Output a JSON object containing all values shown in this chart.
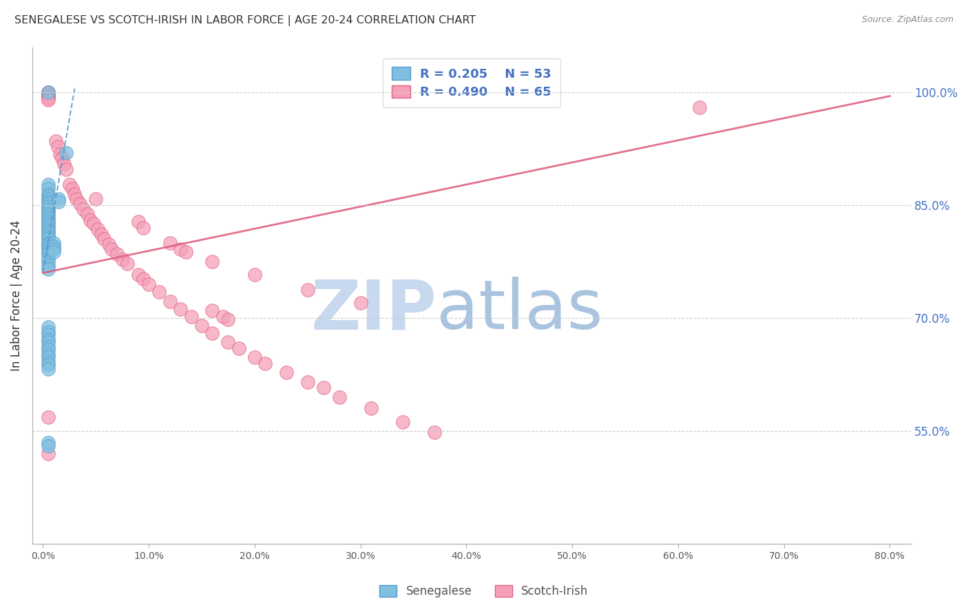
{
  "title": "SENEGALESE VS SCOTCH-IRISH IN LABOR FORCE | AGE 20-24 CORRELATION CHART",
  "source": "Source: ZipAtlas.com",
  "ylabel": "In Labor Force | Age 20-24",
  "x_tick_labels": [
    "0.0%",
    "10.0%",
    "20.0%",
    "30.0%",
    "40.0%",
    "50.0%",
    "60.0%",
    "70.0%",
    "80.0%"
  ],
  "x_tick_vals": [
    0.0,
    0.1,
    0.2,
    0.3,
    0.4,
    0.5,
    0.6,
    0.7,
    0.8
  ],
  "y_tick_labels": [
    "55.0%",
    "70.0%",
    "85.0%",
    "100.0%"
  ],
  "y_tick_vals": [
    0.55,
    0.7,
    0.85,
    1.0
  ],
  "xlim": [
    -0.01,
    0.82
  ],
  "ylim": [
    0.4,
    1.06
  ],
  "legend_R1": "R = 0.205",
  "legend_N1": "N = 53",
  "legend_R2": "R = 0.490",
  "legend_N2": "N = 65",
  "color_blue": "#7fbfdf",
  "color_blue_dark": "#5599cc",
  "color_pink": "#f5a0b8",
  "color_pink_dark": "#e06080",
  "color_axis_label": "#4472c4",
  "watermark_zip": "ZIP",
  "watermark_atlas": "atlas",
  "watermark_color_zip": "#c8d8ee",
  "watermark_color_atlas": "#aac4e0",
  "blue_scatter_x": [
    0.005,
    0.022,
    0.005,
    0.005,
    0.005,
    0.005,
    0.005,
    0.005,
    0.005,
    0.005,
    0.005,
    0.005,
    0.005,
    0.005,
    0.005,
    0.005,
    0.005,
    0.005,
    0.005,
    0.005,
    0.005,
    0.005,
    0.005,
    0.005,
    0.005,
    0.005,
    0.005,
    0.005,
    0.005,
    0.005,
    0.005,
    0.005,
    0.005,
    0.01,
    0.01,
    0.01,
    0.01,
    0.015,
    0.015,
    0.005,
    0.005,
    0.005,
    0.005,
    0.005,
    0.005,
    0.005,
    0.005,
    0.005,
    0.005,
    0.005,
    0.005,
    0.005,
    0.005
  ],
  "blue_scatter_y": [
    1.0,
    0.92,
    0.878,
    0.872,
    0.865,
    0.862,
    0.858,
    0.855,
    0.852,
    0.848,
    0.845,
    0.842,
    0.838,
    0.835,
    0.832,
    0.828,
    0.825,
    0.822,
    0.818,
    0.815,
    0.812,
    0.808,
    0.805,
    0.8,
    0.798,
    0.795,
    0.792,
    0.788,
    0.785,
    0.78,
    0.775,
    0.77,
    0.765,
    0.8,
    0.795,
    0.792,
    0.788,
    0.858,
    0.855,
    0.688,
    0.682,
    0.678,
    0.672,
    0.668,
    0.662,
    0.658,
    0.652,
    0.648,
    0.642,
    0.638,
    0.632,
    0.535,
    0.53
  ],
  "pink_scatter_x": [
    0.005,
    0.005,
    0.005,
    0.005,
    0.005,
    0.005,
    0.012,
    0.014,
    0.016,
    0.018,
    0.02,
    0.022,
    0.025,
    0.028,
    0.03,
    0.032,
    0.035,
    0.038,
    0.042,
    0.045,
    0.048,
    0.052,
    0.055,
    0.058,
    0.062,
    0.065,
    0.07,
    0.075,
    0.08,
    0.09,
    0.095,
    0.1,
    0.11,
    0.12,
    0.13,
    0.14,
    0.15,
    0.16,
    0.175,
    0.185,
    0.2,
    0.21,
    0.23,
    0.25,
    0.265,
    0.28,
    0.31,
    0.34,
    0.37,
    0.05,
    0.09,
    0.095,
    0.12,
    0.13,
    0.135,
    0.16,
    0.2,
    0.25,
    0.3,
    0.16,
    0.17,
    0.175,
    0.62,
    0.005,
    0.005
  ],
  "pink_scatter_y": [
    1.0,
    0.998,
    0.996,
    0.994,
    0.992,
    0.99,
    0.935,
    0.928,
    0.918,
    0.912,
    0.905,
    0.898,
    0.878,
    0.872,
    0.865,
    0.858,
    0.852,
    0.845,
    0.838,
    0.83,
    0.825,
    0.818,
    0.812,
    0.805,
    0.798,
    0.792,
    0.785,
    0.778,
    0.772,
    0.758,
    0.752,
    0.745,
    0.735,
    0.722,
    0.712,
    0.702,
    0.69,
    0.68,
    0.668,
    0.66,
    0.648,
    0.64,
    0.628,
    0.615,
    0.608,
    0.595,
    0.58,
    0.562,
    0.548,
    0.858,
    0.828,
    0.82,
    0.8,
    0.792,
    0.788,
    0.775,
    0.758,
    0.738,
    0.72,
    0.71,
    0.702,
    0.698,
    0.98,
    0.568,
    0.52
  ],
  "blue_trend_x": [
    0.0,
    0.03
  ],
  "blue_trend_y": [
    0.76,
    1.005
  ],
  "pink_trend_x": [
    0.0,
    0.8
  ],
  "pink_trend_y": [
    0.76,
    0.995
  ]
}
